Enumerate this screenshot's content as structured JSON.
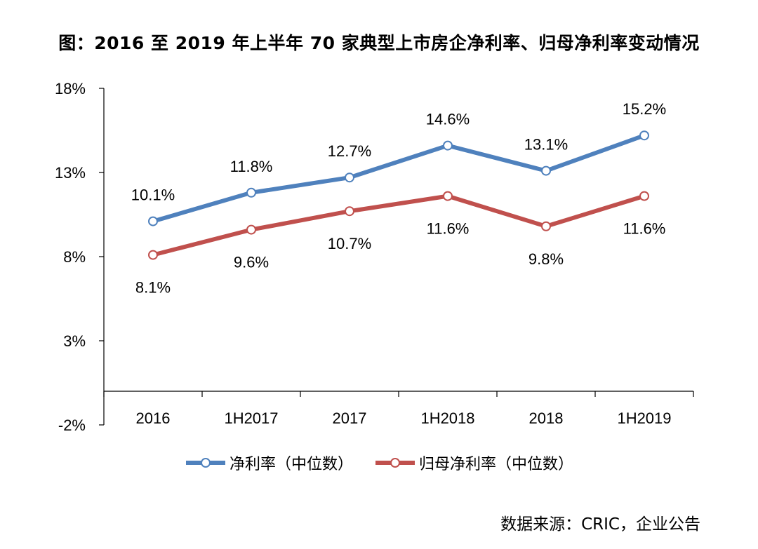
{
  "title": "图：2016 至 2019 年上半年 70 家典型上市房企净利率、归母净利率变动情况",
  "source": "数据来源：CRIC，企业公告",
  "chart_data": {
    "type": "line",
    "categories": [
      "2016",
      "1H2017",
      "2017",
      "1H2018",
      "2018",
      "1H2019"
    ],
    "y_ticks": [
      "18%",
      "13%",
      "8%",
      "3%",
      "-2%"
    ],
    "ylim": [
      -2,
      18
    ],
    "grid": false,
    "legend_position": "bottom",
    "series": [
      {
        "name": "净利率（中位数）",
        "color": "#4F81BD",
        "values": [
          10.1,
          11.8,
          12.7,
          14.6,
          13.1,
          15.2
        ],
        "labels": [
          "10.1%",
          "11.8%",
          "12.7%",
          "14.6%",
          "13.1%",
          "15.2%"
        ]
      },
      {
        "name": "归母净利率（中位数）",
        "color": "#C0504D",
        "values": [
          8.1,
          9.6,
          10.7,
          11.6,
          9.8,
          11.6
        ],
        "labels": [
          "8.1%",
          "9.6%",
          "10.7%",
          "11.6%",
          "9.8%",
          "11.6%"
        ]
      }
    ]
  }
}
